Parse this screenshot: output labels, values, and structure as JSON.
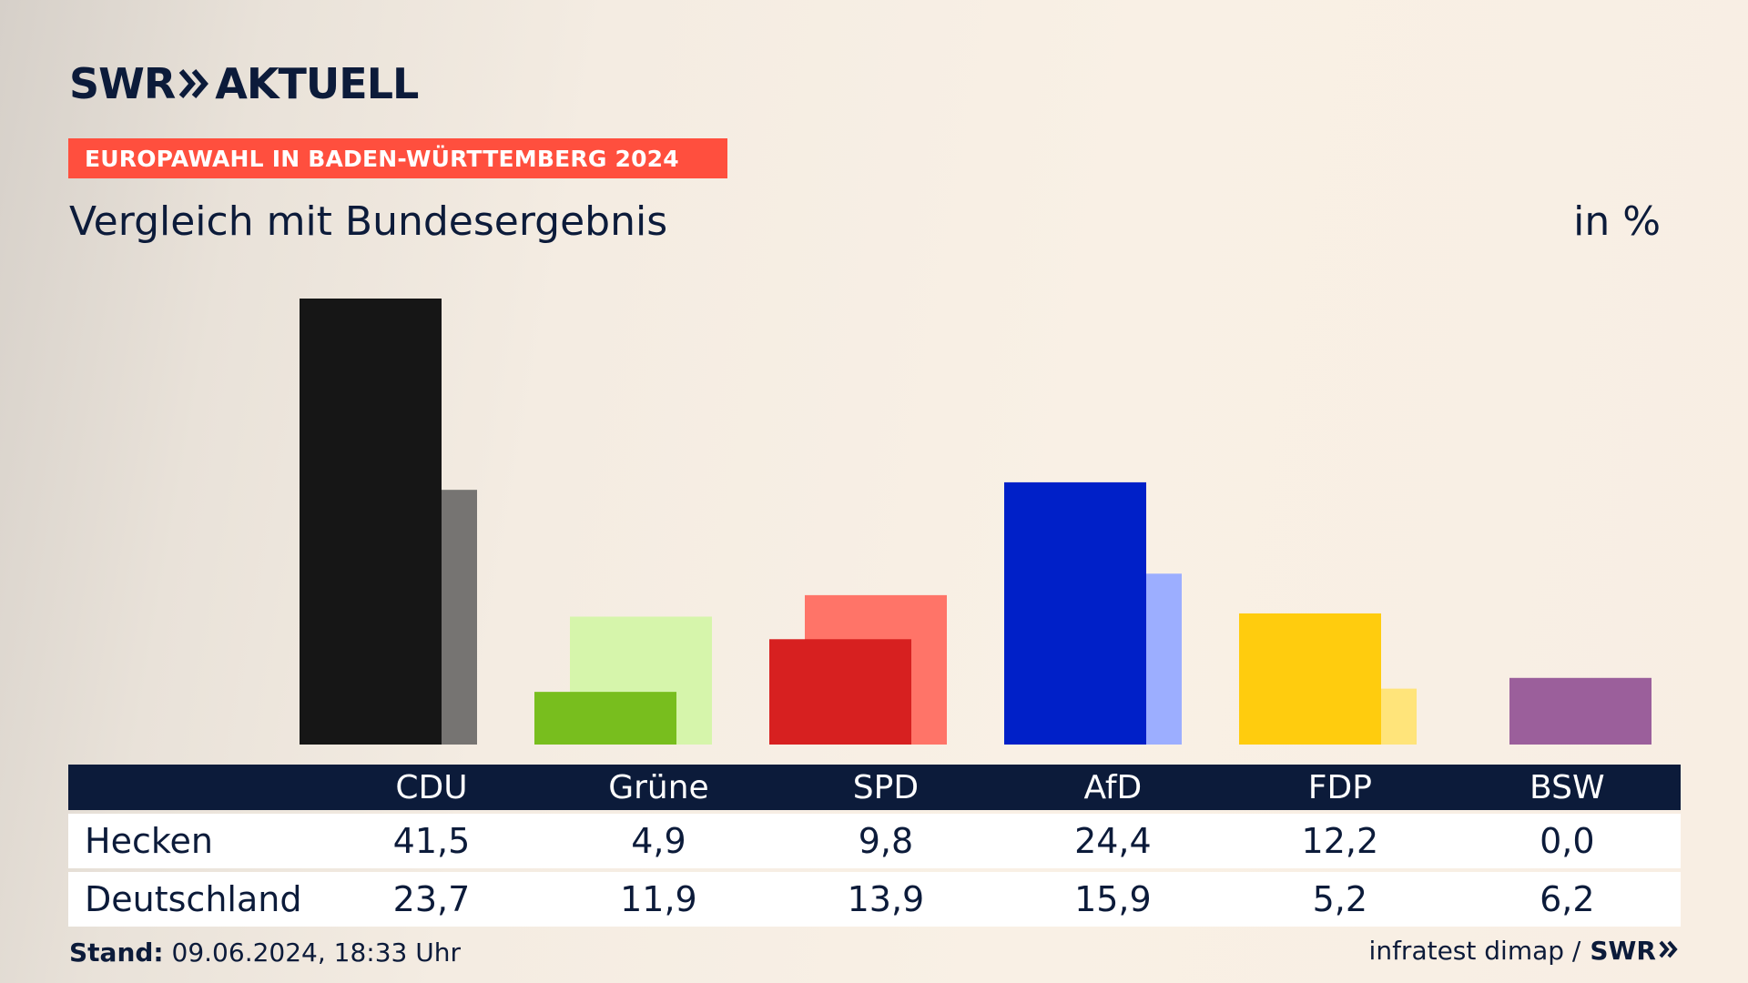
{
  "header": {
    "logo_brand": "SWR",
    "logo_product": "AKTUELL",
    "subtitle": "EUROPAWAHL IN BADEN-WÜRTTEMBERG 2024",
    "chart_title": "Vergleich mit Bundesergebnis",
    "unit": "in %"
  },
  "footer": {
    "stand_label": "Stand:",
    "stand_value": "09.06.2024, 18:33 Uhr",
    "source": "infratest dimap /",
    "source_brand": "SWR"
  },
  "table": {
    "row_labels": [
      "Hecken",
      "Deutschland"
    ]
  },
  "chart_data": {
    "type": "bar",
    "categories": [
      "CDU",
      "Grüne",
      "SPD",
      "AfD",
      "FDP",
      "BSW"
    ],
    "series": [
      {
        "name": "Hecken",
        "values": [
          41.5,
          4.9,
          9.8,
          24.4,
          12.2,
          0.0
        ],
        "display": [
          "41,5",
          "4,9",
          "9,8",
          "24,4",
          "12,2",
          "0,0"
        ],
        "colors": [
          "#161616",
          "#78be1e",
          "#d72020",
          "#0020c8",
          "#ffcc0e",
          "#9b5f9b"
        ]
      },
      {
        "name": "Deutschland",
        "values": [
          23.7,
          11.9,
          13.9,
          15.9,
          5.2,
          6.2
        ],
        "display": [
          "23,7",
          "11,9",
          "13,9",
          "15,9",
          "5,2",
          "6,2"
        ],
        "colors": [
          "#767472",
          "#d6f5ab",
          "#ff7468",
          "#9caeff",
          "#ffe47a",
          "#9b5f9b"
        ]
      }
    ],
    "ylim": [
      0,
      41.5
    ],
    "grid": false,
    "legend": "table-below"
  }
}
